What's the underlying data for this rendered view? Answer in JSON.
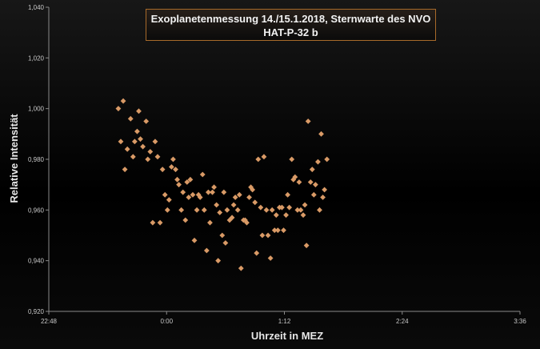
{
  "chart_data": {
    "type": "scatter",
    "title": "Exoplanetenmessung 14./15.1.2018, Sternwarte des NVO",
    "subtitle": "HAT-P-32 b",
    "xlabel": "Uhrzeit in MEZ",
    "ylabel": "Relative Intensität",
    "xlim_minutes": [
      -72,
      216
    ],
    "ylim": [
      0.92,
      1.04
    ],
    "x_ticks": [
      {
        "value": -72,
        "label": "22:48"
      },
      {
        "value": 0,
        "label": "0:00"
      },
      {
        "value": 72,
        "label": "1:12"
      },
      {
        "value": 144,
        "label": "2:24"
      },
      {
        "value": 216,
        "label": "3:36"
      }
    ],
    "y_ticks": [
      {
        "value": 0.92,
        "label": "0,920"
      },
      {
        "value": 0.94,
        "label": "0,940"
      },
      {
        "value": 0.96,
        "label": "0,960"
      },
      {
        "value": 0.98,
        "label": "0,980"
      },
      {
        "value": 1.0,
        "label": "1,000"
      },
      {
        "value": 1.02,
        "label": "1,020"
      },
      {
        "value": 1.04,
        "label": "1,040"
      }
    ],
    "grid": "none",
    "marker_color": "#d99a66",
    "points": [
      [
        -29.5,
        1.0
      ],
      [
        -28.0,
        0.987
      ],
      [
        -26.5,
        1.003
      ],
      [
        -25.5,
        0.976
      ],
      [
        -24.0,
        0.984
      ],
      [
        -22.0,
        0.996
      ],
      [
        -20.5,
        0.981
      ],
      [
        -19.5,
        0.987
      ],
      [
        -18.0,
        0.991
      ],
      [
        -17.0,
        0.999
      ],
      [
        -16.0,
        0.988
      ],
      [
        -14.5,
        0.985
      ],
      [
        -12.5,
        0.995
      ],
      [
        -11.5,
        0.98
      ],
      [
        -10.0,
        0.983
      ],
      [
        -8.5,
        0.955
      ],
      [
        -7.0,
        0.987
      ],
      [
        -5.5,
        0.981
      ],
      [
        -4.0,
        0.955
      ],
      [
        -2.5,
        0.976
      ],
      [
        -1.0,
        0.966
      ],
      [
        0.5,
        0.96
      ],
      [
        1.5,
        0.964
      ],
      [
        3.0,
        0.977
      ],
      [
        4.0,
        0.98
      ],
      [
        5.5,
        0.976
      ],
      [
        6.5,
        0.972
      ],
      [
        7.5,
        0.97
      ],
      [
        9.0,
        0.96
      ],
      [
        10.0,
        0.967
      ],
      [
        11.5,
        0.956
      ],
      [
        12.5,
        0.971
      ],
      [
        13.5,
        0.965
      ],
      [
        14.5,
        0.972
      ],
      [
        16.0,
        0.966
      ],
      [
        17.0,
        0.948
      ],
      [
        18.5,
        0.96
      ],
      [
        19.5,
        0.966
      ],
      [
        20.5,
        0.965
      ],
      [
        22.0,
        0.974
      ],
      [
        23.0,
        0.96
      ],
      [
        24.5,
        0.944
      ],
      [
        25.5,
        0.967
      ],
      [
        26.5,
        0.955
      ],
      [
        28.0,
        0.967
      ],
      [
        29.0,
        0.969
      ],
      [
        30.5,
        0.962
      ],
      [
        31.5,
        0.94
      ],
      [
        32.5,
        0.959
      ],
      [
        34.0,
        0.95
      ],
      [
        35.0,
        0.967
      ],
      [
        36.0,
        0.947
      ],
      [
        37.0,
        0.96
      ],
      [
        38.5,
        0.956
      ],
      [
        40.0,
        0.957
      ],
      [
        41.0,
        0.962
      ],
      [
        42.0,
        0.965
      ],
      [
        43.5,
        0.96
      ],
      [
        44.5,
        0.966
      ],
      [
        45.5,
        0.937
      ],
      [
        47.0,
        0.956
      ],
      [
        48.0,
        0.956
      ],
      [
        49.0,
        0.955
      ],
      [
        50.5,
        0.965
      ],
      [
        51.5,
        0.969
      ],
      [
        52.5,
        0.968
      ],
      [
        54.0,
        0.963
      ],
      [
        55.0,
        0.943
      ],
      [
        56.0,
        0.98
      ],
      [
        57.5,
        0.961
      ],
      [
        58.5,
        0.95
      ],
      [
        59.5,
        0.981
      ],
      [
        61.0,
        0.96
      ],
      [
        62.0,
        0.95
      ],
      [
        63.5,
        0.941
      ],
      [
        64.5,
        0.96
      ],
      [
        66.0,
        0.952
      ],
      [
        67.0,
        0.958
      ],
      [
        68.0,
        0.952
      ],
      [
        69.0,
        0.961
      ],
      [
        70.5,
        0.961
      ],
      [
        71.5,
        0.952
      ],
      [
        73.0,
        0.958
      ],
      [
        74.0,
        0.966
      ],
      [
        75.0,
        0.961
      ],
      [
        76.5,
        0.98
      ],
      [
        77.5,
        0.972
      ],
      [
        78.5,
        0.973
      ],
      [
        80.0,
        0.96
      ],
      [
        81.0,
        0.971
      ],
      [
        82.0,
        0.96
      ],
      [
        83.5,
        0.958
      ],
      [
        84.5,
        0.962
      ],
      [
        85.5,
        0.946
      ],
      [
        86.5,
        0.995
      ],
      [
        88.0,
        0.971
      ],
      [
        89.0,
        0.976
      ],
      [
        90.0,
        0.966
      ],
      [
        91.0,
        0.97
      ],
      [
        92.5,
        0.979
      ],
      [
        93.5,
        0.96
      ],
      [
        94.5,
        0.99
      ],
      [
        95.5,
        0.965
      ],
      [
        96.5,
        0.968
      ],
      [
        98.0,
        0.98
      ]
    ]
  }
}
